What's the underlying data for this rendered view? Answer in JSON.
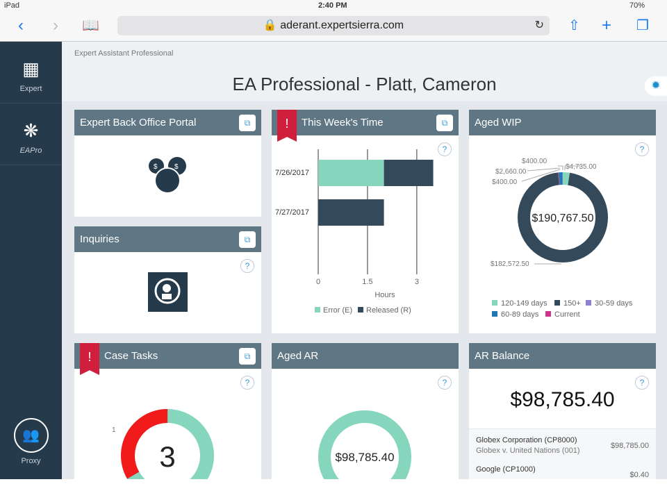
{
  "status": {
    "device": "iPad",
    "time": "2:40 PM",
    "battery": "70%"
  },
  "browser": {
    "url": "aderant.expertsierra.com"
  },
  "sidebar": {
    "items": [
      {
        "label": "Expert",
        "icon": "grid-icon"
      },
      {
        "label": "EAPro",
        "icon": "eapro-icon"
      }
    ],
    "proxy": "Proxy"
  },
  "page": {
    "breadcrumb": "Expert Assistant Professional",
    "title": "EA Professional - Platt, Cameron"
  },
  "cards": {
    "portal": {
      "title": "Expert Back Office Portal"
    },
    "inquiries": {
      "title": "Inquiries"
    },
    "time": {
      "title": "This Week's Time",
      "flag": "!"
    },
    "wip": {
      "title": "Aged WIP",
      "center": "$190,767.50"
    },
    "tasks": {
      "title": "Case Tasks",
      "flag": "!",
      "center": "3",
      "label": "1"
    },
    "ar": {
      "title": "Aged AR",
      "center": "$98,785.40"
    },
    "balance": {
      "title": "AR Balance",
      "total": "$98,785.40",
      "rows": [
        {
          "name": "Globex Corporation (CP8000)",
          "matter": "Globex v. United Nations (001)",
          "amount": "$98,785.00"
        },
        {
          "name": "Google (CP1000)",
          "amount": "$0.40"
        }
      ]
    }
  },
  "help": "?",
  "chart_data": [
    {
      "type": "bar",
      "orientation": "horizontal",
      "stacked": true,
      "categories": [
        "7/26/2017",
        "7/27/2017"
      ],
      "series": [
        {
          "name": "Error (E)",
          "color": "#86d5bd",
          "values": [
            2.0,
            0
          ]
        },
        {
          "name": "Released (R)",
          "color": "#34495a",
          "values": [
            1.5,
            2.0
          ]
        }
      ],
      "xlabel": "Hours",
      "xticks": [
        "0",
        "1.5",
        "3"
      ],
      "xlim": [
        0,
        3.6
      ],
      "grid": true,
      "legend": "bottom"
    },
    {
      "type": "pie",
      "donut": true,
      "center_label": "$190,767.50",
      "slices": [
        {
          "name": "120-149 days",
          "value": 4735.0,
          "label": "$4,735.00",
          "color": "#86d5bd"
        },
        {
          "name": "150+",
          "value": 182572.5,
          "label": "$182,572.50",
          "color": "#34495a"
        },
        {
          "name": "Current",
          "value": 400.0,
          "label": "$400.00",
          "color": "#d0338a"
        },
        {
          "name": "60-89 days",
          "value": 2660.0,
          "label": "$2,660.00",
          "color": "#1f77b4"
        },
        {
          "name": "30-59 days",
          "value": 400.0,
          "label": "$400.00",
          "color": "#8b80d6"
        }
      ],
      "legend": "bottom"
    }
  ]
}
